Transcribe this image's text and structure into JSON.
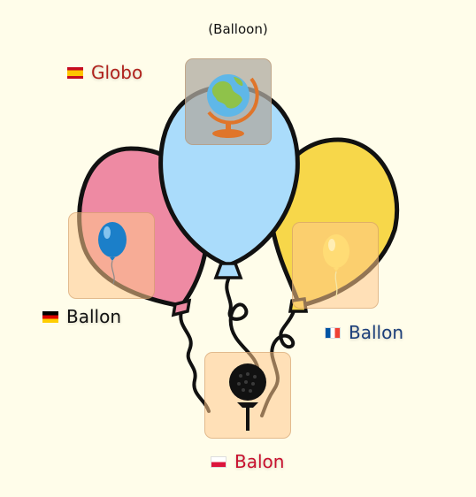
{
  "title": "(Balloon)",
  "labels": {
    "es": {
      "text": "Globo",
      "color": "#b0221c",
      "flag": "spain-flag-icon"
    },
    "de": {
      "text": "Ballon",
      "color": "#111111",
      "flag": "germany-flag-icon"
    },
    "fr": {
      "text": "Ballon",
      "color": "#1c3f7a",
      "flag": "france-flag-icon"
    },
    "pl": {
      "text": "Balon",
      "color": "#c8102e",
      "flag": "poland-flag-icon"
    }
  },
  "icons": {
    "globe": "globe-icon",
    "blue_balloon": "blue-balloon-icon",
    "yellow_balloon": "yellow-balloon-icon",
    "golf_ball": "golf-ball-on-tee-icon"
  },
  "colors": {
    "background": "#fffdea",
    "pink_balloon": "#ee8aa3",
    "blue_balloon": "#aadcfb",
    "yellow_balloon": "#f7d74a",
    "card": "#ffd3a0"
  }
}
